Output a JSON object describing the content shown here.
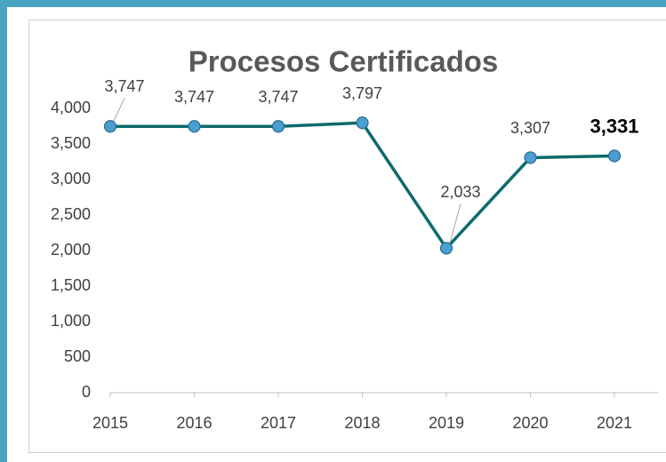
{
  "chart_data": {
    "type": "line",
    "title": "Procesos Certificados",
    "categories": [
      "2015",
      "2016",
      "2017",
      "2018",
      "2019",
      "2020",
      "2021"
    ],
    "values": [
      3747,
      3747,
      3747,
      3797,
      2033,
      3307,
      3331
    ],
    "value_labels": [
      "3,747",
      "3,747",
      "3,747",
      "3,797",
      "2,033",
      "3,307",
      "3,331"
    ],
    "color": "#0d6b6b",
    "marker_color": "#4a9fd0",
    "ylim": [
      0,
      4000
    ],
    "yticks": [
      0,
      500,
      {
        "value": 1000,
        "label": "1,000"
      },
      {
        "value": 1500,
        "label": "1,500"
      },
      {
        "value": 2000,
        "label": "2,000"
      },
      {
        "value": 2500,
        "label": "2,500"
      },
      {
        "value": 3000,
        "label": "3,000"
      },
      {
        "value": 3500,
        "label": "3,500"
      },
      {
        "value": 4000,
        "label": "4,000"
      }
    ],
    "grid": false
  }
}
